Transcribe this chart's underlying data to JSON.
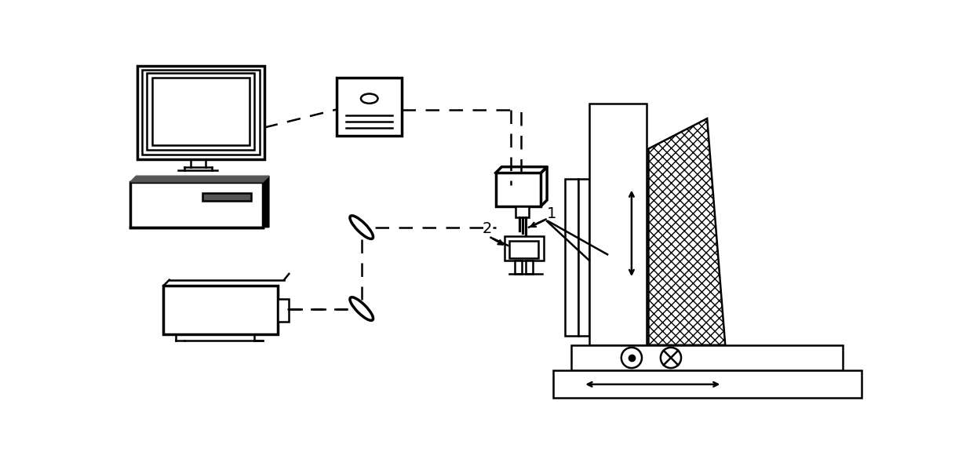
{
  "bg_color": "#ffffff",
  "lc": "#000000",
  "lw": 1.8,
  "tlw": 2.5,
  "fig_width": 12.4,
  "fig_height": 5.85,
  "dpi": 100
}
